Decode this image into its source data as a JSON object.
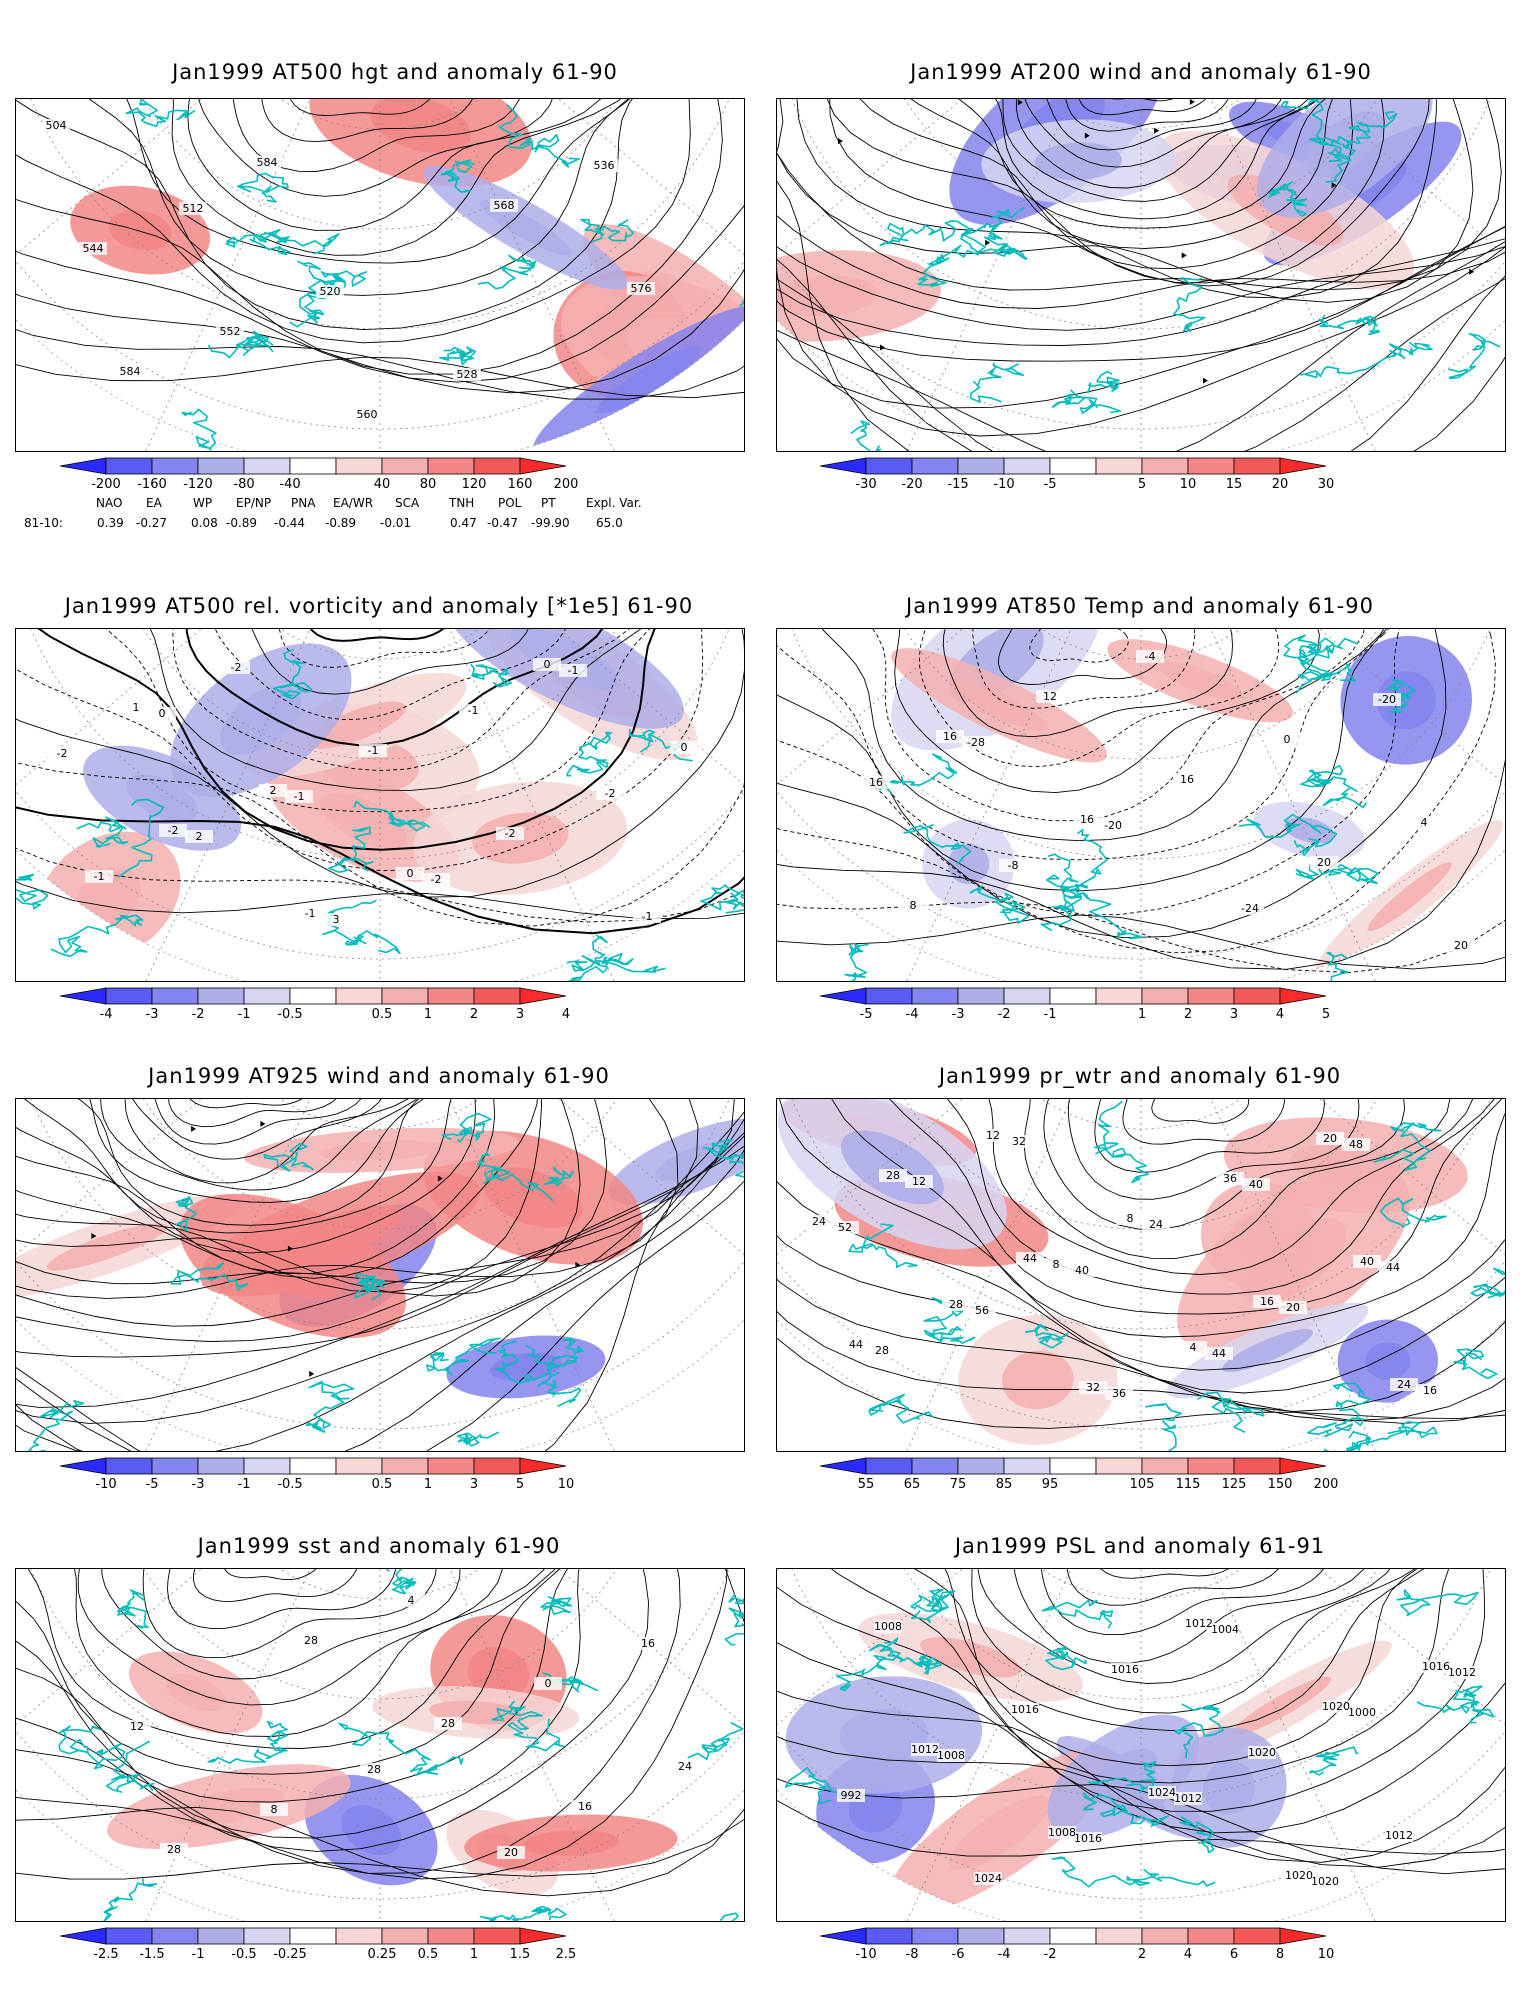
{
  "panels": [
    {
      "title": "Jan1999 AT500 hgt and anomaly 61-90",
      "contour_labels": [
        "504",
        "512",
        "520",
        "528",
        "536",
        "544",
        "552",
        "560",
        "568",
        "576",
        "584",
        "584"
      ],
      "colorbar": [
        "-200",
        "-160",
        "-120",
        "-80",
        "-40",
        "40",
        "80",
        "120",
        "160",
        "200"
      ],
      "style": "height"
    },
    {
      "title": "Jan1999 AT200 wind and anomaly 61-90",
      "contour_labels": [],
      "colorbar": [
        "-30",
        "-20",
        "-15",
        "-10",
        "-5",
        "5",
        "10",
        "15",
        "20",
        "30"
      ],
      "style": "wind"
    },
    {
      "title": "Jan1999 AT500 rel. vorticity and anomaly [*1e5] 61-90",
      "contour_labels": [
        "0",
        "-1",
        "-2",
        "-1",
        "-2",
        "2",
        "3",
        "-1",
        "-2",
        "-1",
        "-2",
        "-1",
        "-2",
        "-1",
        "1",
        "2",
        "0",
        "0",
        "0",
        "-2",
        "-1"
      ],
      "colorbar": [
        "-4",
        "-3",
        "-2",
        "-1",
        "-0.5",
        "0.5",
        "1",
        "2",
        "3",
        "4"
      ],
      "style": "vort"
    },
    {
      "title": "Jan1999 AT850 Temp and anomaly 61-90",
      "contour_labels": [
        "-28",
        "-20",
        "-24",
        "-20",
        "16",
        "-8",
        "-4",
        "0",
        "4",
        "8",
        "12",
        "16",
        "20",
        "20",
        "16",
        "16"
      ],
      "colorbar": [
        "-5",
        "-4",
        "-3",
        "-2",
        "-1",
        "1",
        "2",
        "3",
        "4",
        "5"
      ],
      "style": "temp"
    },
    {
      "title": "Jan1999 AT925 wind and anomaly 61-90",
      "contour_labels": [],
      "colorbar": [
        "-10",
        "-5",
        "-3",
        "-1",
        "-0.5",
        "0.5",
        "1",
        "3",
        "5",
        "10"
      ],
      "style": "wind925"
    },
    {
      "title": "Jan1999 pr_wtr and anomaly 61-90",
      "contour_labels": [
        "40",
        "44",
        "48",
        "52",
        "56",
        "36",
        "40",
        "44",
        "28",
        "32",
        "24",
        "20",
        "16",
        "12",
        "8",
        "4",
        "20",
        "24",
        "28",
        "32",
        "36",
        "40",
        "44",
        "12",
        "8",
        "16",
        "24",
        "28",
        "44"
      ],
      "colorbar": [
        "55",
        "65",
        "75",
        "85",
        "95",
        "105",
        "115",
        "125",
        "150",
        "200"
      ],
      "style": "prwtr"
    },
    {
      "title": "Jan1999 sst and anomaly 61-90",
      "contour_labels": [
        "28",
        "20",
        "16",
        "12",
        "8",
        "4",
        "0",
        "24",
        "28",
        "28",
        "28",
        "16"
      ],
      "colorbar": [
        "-2.5",
        "-1.5",
        "-1",
        "-0.5",
        "-0.25",
        "0.25",
        "0.5",
        "1",
        "1.5",
        "2.5"
      ],
      "style": "sst"
    },
    {
      "title": "Jan1999 PSL and anomaly 61-91",
      "contour_labels": [
        "1012",
        "1020",
        "1012",
        "1008",
        "1016",
        "1004",
        "1000",
        "992",
        "1024",
        "1016",
        "1020",
        "1012",
        "1008",
        "1016",
        "1024",
        "1020",
        "1016",
        "1012",
        "1008",
        "1012",
        "1020"
      ],
      "colorbar": [
        "-10",
        "-8",
        "-6",
        "-4",
        "-2",
        "2",
        "4",
        "6",
        "8",
        "10"
      ],
      "style": "psl"
    }
  ],
  "teleconnections": {
    "headers": [
      "NAO",
      "EA",
      "WP",
      "EP/NP",
      "PNA",
      "EA/WR",
      "SCA",
      "TNH",
      "POL",
      "PT",
      "Expl. Var."
    ],
    "row_label": "81-10:",
    "values": [
      "0.39",
      "-0.27",
      "0.08",
      "-0.89",
      "-0.44",
      "-0.89",
      "-0.01",
      "0.47",
      "-0.47",
      "-99.90",
      "65.0"
    ]
  },
  "colors": {
    "blue": [
      "#2b2bff",
      "#5a5af5",
      "#8484ee",
      "#aeaee9",
      "#d6d6f2"
    ],
    "red": [
      "#f6d6d6",
      "#f4b0b0",
      "#f38686",
      "#f25a5a",
      "#ff2b2b"
    ],
    "coast": "#00bcbc",
    "contour": "#000000"
  }
}
